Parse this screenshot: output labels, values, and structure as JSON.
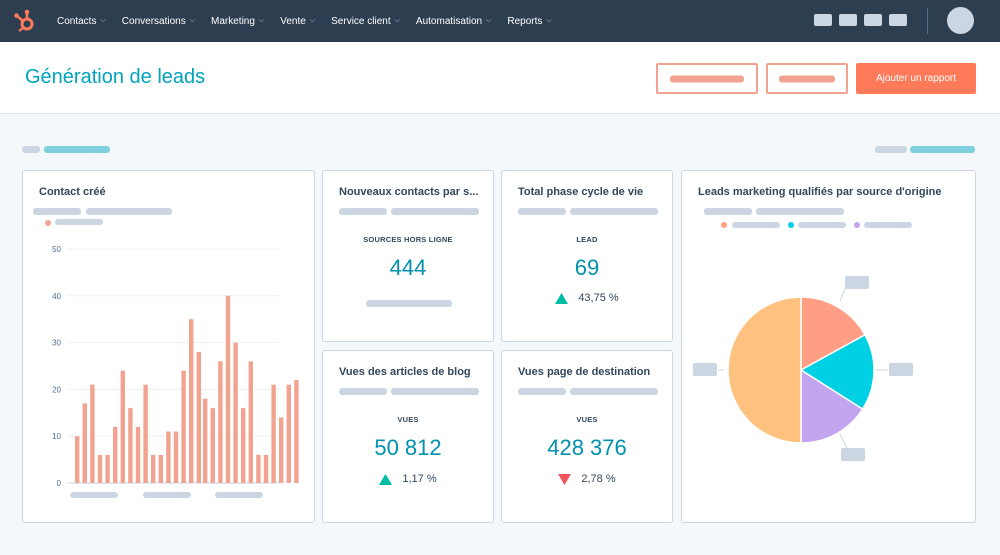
{
  "nav": {
    "items": [
      {
        "label": "Contacts"
      },
      {
        "label": "Conversations"
      },
      {
        "label": "Marketing"
      },
      {
        "label": "Vente"
      },
      {
        "label": "Service client"
      },
      {
        "label": "Automatisation"
      },
      {
        "label": "Reports"
      }
    ]
  },
  "header": {
    "title": "Génération de leads",
    "add_report_label": "Ajouter un rapport"
  },
  "colors": {
    "accent": "#00a4bd",
    "primary": "#ff7a59",
    "bar": "#f2a38f",
    "up": "#00bda5",
    "down": "#f2545b"
  },
  "cards": {
    "contact_cree": {
      "title": "Contact créé"
    },
    "nouveaux_contacts": {
      "title": "Nouveaux contacts par s...",
      "label": "SOURCES HORS LIGNE",
      "value": "444"
    },
    "total_phase": {
      "title": "Total phase cycle de vie",
      "label": "LEAD",
      "value": "69",
      "change": "43,75 %",
      "direction": "up"
    },
    "vues_blog": {
      "title": "Vues des articles de blog",
      "label": "VUES",
      "value": "50 812",
      "change": "1,17 %",
      "direction": "up"
    },
    "vues_page": {
      "title": "Vues page de destination",
      "label": "VUES",
      "value": "428 376",
      "change": "2,78 %",
      "direction": "down"
    },
    "leads_source": {
      "title": "Leads marketing qualifiés par source d'origine"
    }
  },
  "chart_data": [
    {
      "type": "bar",
      "ylim": [
        0,
        50
      ],
      "yticks": [
        "0",
        "10",
        "20",
        "30",
        "40",
        "50"
      ],
      "groups": [
        [
          10,
          17,
          21,
          6,
          6,
          12,
          24,
          16,
          12,
          21,
          6,
          6,
          11,
          11,
          24,
          35,
          28
        ],
        [
          18,
          16,
          26,
          40,
          30,
          16,
          26,
          6,
          6,
          21,
          14,
          21,
          22
        ]
      ]
    },
    {
      "type": "pie",
      "values": [
        17,
        17,
        16,
        50
      ],
      "colors": [
        "#ff9e85",
        "#00d0e4",
        "#c3a4ef",
        "#ffc180"
      ]
    }
  ]
}
